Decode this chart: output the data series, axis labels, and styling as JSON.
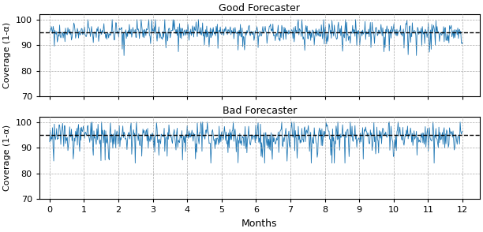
{
  "title_good": "Good Forecaster",
  "title_bad": "Bad Forecaster",
  "xlabel": "Months",
  "ylabel": "Coverage (1-α)",
  "dashed_line": 95,
  "ylim": [
    70,
    102
  ],
  "yticks": [
    70,
    80,
    90,
    100
  ],
  "xlim": [
    -0.3,
    12.5
  ],
  "xticks": [
    0,
    1,
    2,
    3,
    4,
    5,
    6,
    7,
    8,
    9,
    10,
    11,
    12
  ],
  "line_color": "#1f77b4",
  "dashed_color": "black",
  "grid_color": "#aaaaaa",
  "n_points": 700,
  "good_seed": 42,
  "bad_seed": 123,
  "figsize": [
    6.12,
    2.94
  ],
  "dpi": 100
}
